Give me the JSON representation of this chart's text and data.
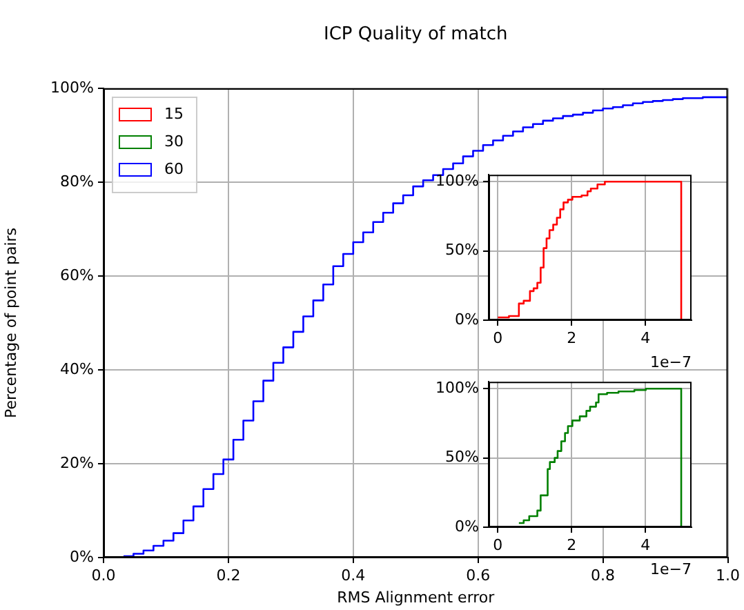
{
  "chart_data": [
    {
      "type": "step",
      "title": "ICP Quality of match",
      "xlabel": "RMS Alignment error",
      "ylabel": "Percentage of point pairs",
      "legend": "top left",
      "grid": true,
      "xlim": [
        0,
        1
      ],
      "ylim": [
        0,
        100
      ],
      "xticks": [
        {
          "value": 0,
          "label": "0.0"
        },
        {
          "value": 0.2,
          "label": "0.2"
        },
        {
          "value": 0.4,
          "label": "0.4"
        },
        {
          "value": 0.6,
          "label": "0.6"
        },
        {
          "value": 0.8,
          "label": "0.8"
        },
        {
          "value": 1,
          "label": "1.0"
        }
      ],
      "yticks": [
        {
          "value": 0,
          "label": "0%"
        },
        {
          "value": 20,
          "label": "20%"
        },
        {
          "value": 40,
          "label": "40%"
        },
        {
          "value": 60,
          "label": "60%"
        },
        {
          "value": 80,
          "label": "80%"
        },
        {
          "value": 100,
          "label": "100%"
        }
      ],
      "x": [
        0.032,
        0.048,
        0.064,
        0.08,
        0.096,
        0.112,
        0.128,
        0.144,
        0.16,
        0.176,
        0.192,
        0.208,
        0.224,
        0.24,
        0.256,
        0.272,
        0.288,
        0.304,
        0.32,
        0.336,
        0.352,
        0.368,
        0.384,
        0.4,
        0.416,
        0.432,
        0.448,
        0.464,
        0.48,
        0.496,
        0.512,
        0.528,
        0.544,
        0.56,
        0.576,
        0.592,
        0.608,
        0.624,
        0.64,
        0.656,
        0.672,
        0.688,
        0.704,
        0.72,
        0.736,
        0.752,
        0.768,
        0.784,
        0.8,
        0.816,
        0.832,
        0.848,
        0.864,
        0.88,
        0.896,
        0.912,
        0.928,
        0.96,
        1
      ],
      "series": [
        {
          "name": "60",
          "color": "#0000ff",
          "values": [
            0.3,
            0.8,
            1.5,
            2.5,
            3.6,
            5.2,
            7.9,
            10.9,
            14.6,
            17.8,
            20.9,
            25.1,
            29.2,
            33.3,
            37.7,
            41.5,
            44.8,
            48.1,
            51.4,
            54.8,
            58.2,
            62.1,
            64.7,
            67.2,
            69.3,
            71.5,
            73.5,
            75.5,
            77.2,
            79.1,
            80.4,
            81.5,
            82.8,
            84,
            85.5,
            86.7,
            87.9,
            88.9,
            89.9,
            90.8,
            91.7,
            92.4,
            93.1,
            93.6,
            94.1,
            94.4,
            94.8,
            95.3,
            95.7,
            96,
            96.4,
            96.8,
            97.1,
            97.3,
            97.5,
            97.7,
            97.9,
            98.1,
            98.1
          ]
        }
      ]
    },
    {
      "type": "step",
      "grid": true,
      "annotations": [
        "1e−7"
      ],
      "xlim": [
        -0.25,
        5.25
      ],
      "ylim": [
        0,
        105
      ],
      "xticks": [
        0,
        2,
        4
      ],
      "yticks": [
        {
          "value": 0,
          "label": "0%"
        },
        {
          "value": 50,
          "label": "50%"
        },
        {
          "value": 100,
          "label": "100%"
        }
      ],
      "x": [
        0,
        0.3,
        0.57,
        0.7,
        0.87,
        0.97,
        1.07,
        1.16,
        1.24,
        1.32,
        1.4,
        1.5,
        1.6,
        1.69,
        1.78,
        1.9,
        2.02,
        2.27,
        2.43,
        2.52,
        2.7,
        2.9,
        4.97
      ],
      "series": [
        {
          "name": "15",
          "color": "#ff0000",
          "values": [
            2,
            3,
            12,
            14,
            21,
            23,
            27,
            38,
            52,
            59,
            65,
            69,
            74,
            80,
            85,
            87,
            89,
            90,
            93,
            95,
            98,
            100,
            0
          ]
        }
      ]
    },
    {
      "type": "step",
      "grid": true,
      "annotations": [
        "1e−7"
      ],
      "xlim": [
        -0.25,
        5.25
      ],
      "ylim": [
        0,
        105
      ],
      "xticks": [
        0,
        2,
        4
      ],
      "yticks": [
        {
          "value": 0,
          "label": "0%"
        },
        {
          "value": 50,
          "label": "50%"
        },
        {
          "value": 100,
          "label": "100%"
        }
      ],
      "x": [
        0.57,
        0.7,
        0.85,
        1.07,
        1.16,
        1.35,
        1.41,
        1.54,
        1.62,
        1.72,
        1.82,
        1.9,
        2.02,
        2.22,
        2.4,
        2.5,
        2.66,
        2.73,
        2.96,
        3.27,
        3.7,
        4.01,
        4.97
      ],
      "series": [
        {
          "name": "30",
          "color": "#008000",
          "values": [
            3,
            5,
            8,
            12,
            23,
            42,
            47,
            50,
            55,
            62,
            68,
            73,
            77,
            80,
            84,
            87,
            90,
            96,
            97,
            98,
            99,
            100,
            0
          ]
        }
      ]
    }
  ]
}
